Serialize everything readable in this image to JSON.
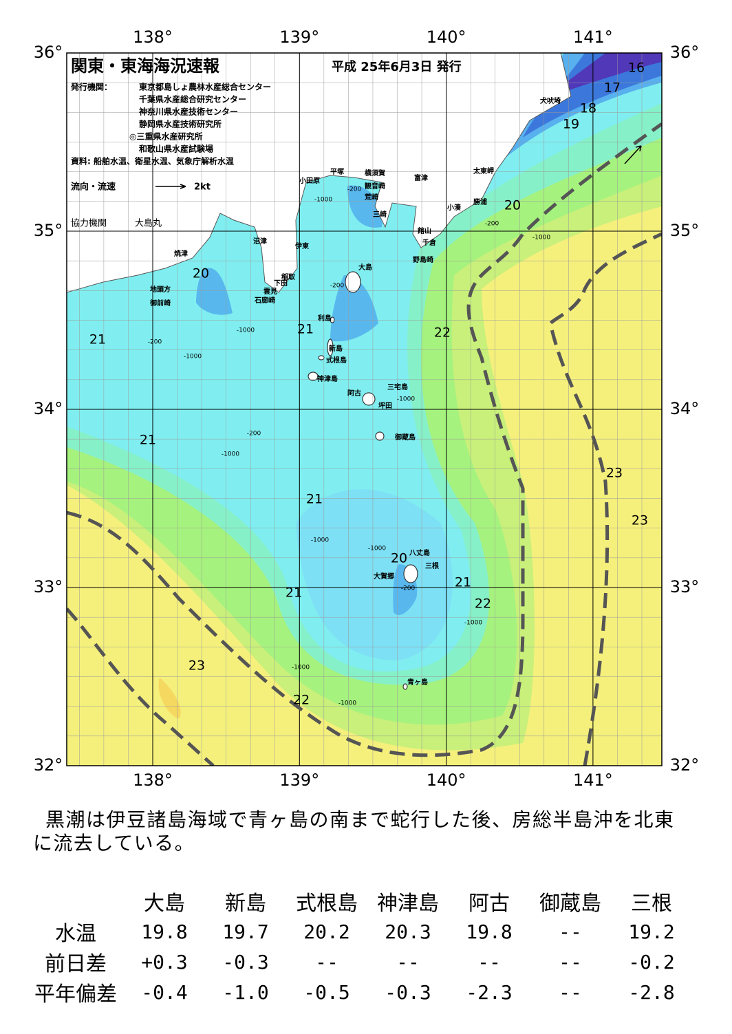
{
  "header": {
    "title": "関東・東海海況速報",
    "date": "平成 25年6月3日 発行",
    "publisher_label": "発行機関：",
    "publishers": [
      "東京都島しょ農林水産総合センター",
      "千葉県水産総合研究センター",
      "神奈川県水産技術センター",
      "静岡県水産技術研究所",
      "◎三重県水産研究所",
      "和歌山県水産試験場"
    ],
    "source": "資料: 船舶水温、衛星水温、気象庁解析水温",
    "current_label": "流向・流速",
    "current_scale": "2kt",
    "cooperation_label": "協力機関",
    "cooperation": "大島丸"
  },
  "map": {
    "lon_ticks": [
      {
        "value": 138,
        "label": "138°"
      },
      {
        "value": 139,
        "label": "139°"
      },
      {
        "value": 140,
        "label": "140°"
      },
      {
        "value": 141,
        "label": "141°"
      }
    ],
    "lat_ticks": [
      {
        "value": 36,
        "label": "36°"
      },
      {
        "value": 35,
        "label": "35°"
      },
      {
        "value": 34,
        "label": "34°"
      },
      {
        "value": 33,
        "label": "33°"
      },
      {
        "value": 32,
        "label": "32°"
      }
    ],
    "places": [
      "犬吠埼",
      "太東岬",
      "勝浦",
      "小湊",
      "館山",
      "千倉",
      "野島崎",
      "富津",
      "横須賀",
      "観音崎",
      "荒崎",
      "三崎",
      "平塚",
      "小田原",
      "沼津",
      "伊東",
      "焼津",
      "稲取",
      "下田",
      "雲見",
      "石廊崎",
      "地頭方",
      "御前崎",
      "大島",
      "利島",
      "新島",
      "式根島",
      "神津島",
      "三宅島",
      "阿古",
      "坪田",
      "御蔵島",
      "八丈島",
      "三根",
      "大賀郷",
      "青ヶ島"
    ],
    "isotherm_labels": [
      16,
      17,
      18,
      19,
      20,
      20,
      21,
      21,
      22,
      21,
      21,
      23,
      23,
      20,
      21,
      22,
      21,
      23,
      22
    ],
    "depth_labels": [
      -200,
      -1000,
      -200,
      -200,
      -1000,
      -1000,
      -200,
      -1000,
      -1000,
      -1000,
      -1000,
      -200,
      -1000,
      -1000,
      -1000,
      -200,
      -1000
    ]
  },
  "description": "黒潮は伊豆諸島海域で青ヶ島の南まで蛇行した後、房総半島沖を北東に流去している。",
  "table": {
    "headers": [
      "大島",
      "新島",
      "式根島",
      "神津島",
      "阿古",
      "御蔵島",
      "三根"
    ],
    "rows": [
      {
        "label": "水温",
        "values": [
          "19.8",
          "19.7",
          "20.2",
          "20.3",
          "19.8",
          "--",
          "19.2"
        ]
      },
      {
        "label": "前日差",
        "values": [
          "+0.3",
          "-0.3",
          "--",
          "--",
          "--",
          "--",
          "-0.2"
        ]
      },
      {
        "label": "平年偏差",
        "values": [
          "-0.4",
          "-1.0",
          "-0.5",
          "-0.3",
          "-2.3",
          "--",
          "-2.8"
        ]
      }
    ]
  }
}
